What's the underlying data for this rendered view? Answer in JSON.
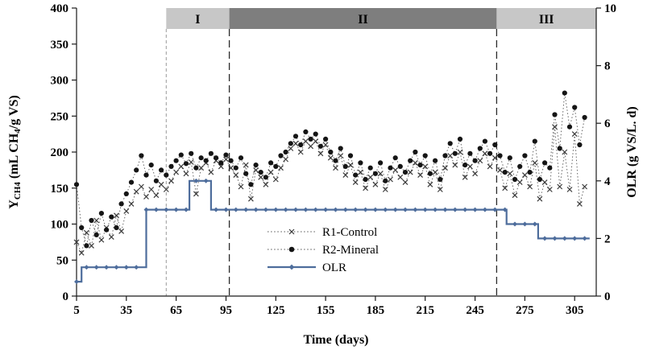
{
  "figure": {
    "background": "#ffffff"
  },
  "chart_data": {
    "type": "scatter",
    "title": "",
    "xlabel": "Time (days)",
    "ylabel_left": "Y_{CH4}  (mL CH_{4}/g VS)",
    "ylabel_right": "OLR (g VS/L. d)",
    "xlim": [
      5,
      318
    ],
    "ylim_left": [
      0,
      400
    ],
    "ylim_right": [
      0,
      10
    ],
    "x_ticks": [
      5,
      35,
      65,
      95,
      125,
      155,
      185,
      215,
      245,
      275,
      305
    ],
    "y_left_ticks": [
      0,
      50,
      100,
      150,
      200,
      250,
      300,
      350,
      400
    ],
    "y_right_ticks": [
      0,
      2,
      4,
      6,
      8,
      10
    ],
    "grid": false,
    "legend_position": "inside-bottom-center",
    "phases": [
      {
        "label": "I",
        "from": 59,
        "to": 97,
        "color": "#c7c7c7"
      },
      {
        "label": "II",
        "from": 97,
        "to": 258,
        "color": "#7e7e7e"
      },
      {
        "label": "III",
        "from": 258,
        "to": 318,
        "color": "#c7c7c7"
      }
    ],
    "guide_lines": [
      {
        "x": 59,
        "color": "#9a9a9a",
        "dash": "4 3",
        "width": 1
      },
      {
        "x": 97,
        "color": "#2b2b2b",
        "dash": "9 5",
        "width": 1.3
      },
      {
        "x": 258,
        "color": "#2b2b2b",
        "dash": "9 5",
        "width": 1.3
      }
    ],
    "series": [
      {
        "name": "R1-Control",
        "axis": "left",
        "marker": "x",
        "marker_color": "#3a3a3a",
        "line": "dotted",
        "line_color": "#555555",
        "points": [
          [
            5,
            75
          ],
          [
            8,
            60
          ],
          [
            11,
            88
          ],
          [
            14,
            70
          ],
          [
            17,
            105
          ],
          [
            20,
            78
          ],
          [
            23,
            95
          ],
          [
            26,
            82
          ],
          [
            29,
            112
          ],
          [
            32,
            90
          ],
          [
            35,
            118
          ],
          [
            38,
            128
          ],
          [
            41,
            145
          ],
          [
            44,
            152
          ],
          [
            47,
            138
          ],
          [
            50,
            148
          ],
          [
            53,
            140
          ],
          [
            56,
            155
          ],
          [
            59,
            148
          ],
          [
            62,
            160
          ],
          [
            65,
            172
          ],
          [
            68,
            180
          ],
          [
            71,
            170
          ],
          [
            74,
            186
          ],
          [
            77,
            142
          ],
          [
            80,
            178
          ],
          [
            83,
            185
          ],
          [
            86,
            172
          ],
          [
            89,
            188
          ],
          [
            92,
            180
          ],
          [
            95,
            190
          ],
          [
            98,
            178
          ],
          [
            101,
            168
          ],
          [
            104,
            152
          ],
          [
            107,
            182
          ],
          [
            110,
            135
          ],
          [
            113,
            175
          ],
          [
            116,
            165
          ],
          [
            119,
            155
          ],
          [
            122,
            172
          ],
          [
            125,
            162
          ],
          [
            128,
            178
          ],
          [
            131,
            190
          ],
          [
            134,
            205
          ],
          [
            137,
            212
          ],
          [
            140,
            200
          ],
          [
            143,
            215
          ],
          [
            146,
            208
          ],
          [
            149,
            215
          ],
          [
            152,
            198
          ],
          [
            155,
            210
          ],
          [
            158,
            192
          ],
          [
            161,
            178
          ],
          [
            164,
            195
          ],
          [
            167,
            168
          ],
          [
            170,
            182
          ],
          [
            173,
            158
          ],
          [
            176,
            172
          ],
          [
            179,
            150
          ],
          [
            182,
            165
          ],
          [
            185,
            155
          ],
          [
            188,
            170
          ],
          [
            191,
            148
          ],
          [
            194,
            162
          ],
          [
            197,
            175
          ],
          [
            200,
            165
          ],
          [
            203,
            158
          ],
          [
            206,
            172
          ],
          [
            209,
            185
          ],
          [
            212,
            168
          ],
          [
            215,
            180
          ],
          [
            218,
            155
          ],
          [
            221,
            172
          ],
          [
            224,
            148
          ],
          [
            227,
            178
          ],
          [
            230,
            195
          ],
          [
            233,
            182
          ],
          [
            236,
            200
          ],
          [
            239,
            165
          ],
          [
            242,
            180
          ],
          [
            245,
            170
          ],
          [
            248,
            188
          ],
          [
            251,
            198
          ],
          [
            254,
            180
          ],
          [
            257,
            192
          ],
          [
            260,
            175
          ],
          [
            263,
            150
          ],
          [
            266,
            170
          ],
          [
            269,
            140
          ],
          [
            272,
            158
          ],
          [
            275,
            168
          ],
          [
            278,
            152
          ],
          [
            281,
            185
          ],
          [
            284,
            135
          ],
          [
            287,
            158
          ],
          [
            290,
            148
          ],
          [
            293,
            235
          ],
          [
            296,
            152
          ],
          [
            299,
            200
          ],
          [
            302,
            148
          ],
          [
            305,
            225
          ],
          [
            308,
            128
          ],
          [
            311,
            152
          ]
        ]
      },
      {
        "name": "R2-Mineral",
        "axis": "left",
        "marker": "circle",
        "marker_color": "#151515",
        "line": "dotted",
        "line_color": "#555555",
        "points": [
          [
            5,
            155
          ],
          [
            8,
            95
          ],
          [
            11,
            70
          ],
          [
            14,
            105
          ],
          [
            17,
            85
          ],
          [
            20,
            115
          ],
          [
            23,
            92
          ],
          [
            26,
            110
          ],
          [
            29,
            95
          ],
          [
            32,
            128
          ],
          [
            35,
            142
          ],
          [
            38,
            158
          ],
          [
            41,
            175
          ],
          [
            44,
            195
          ],
          [
            47,
            168
          ],
          [
            50,
            182
          ],
          [
            53,
            160
          ],
          [
            56,
            175
          ],
          [
            59,
            168
          ],
          [
            62,
            180
          ],
          [
            65,
            188
          ],
          [
            68,
            196
          ],
          [
            71,
            184
          ],
          [
            74,
            198
          ],
          [
            77,
            178
          ],
          [
            80,
            192
          ],
          [
            83,
            188
          ],
          [
            86,
            198
          ],
          [
            89,
            192
          ],
          [
            92,
            185
          ],
          [
            95,
            196
          ],
          [
            98,
            188
          ],
          [
            101,
            178
          ],
          [
            104,
            192
          ],
          [
            107,
            170
          ],
          [
            110,
            155
          ],
          [
            113,
            182
          ],
          [
            116,
            172
          ],
          [
            119,
            165
          ],
          [
            122,
            185
          ],
          [
            125,
            180
          ],
          [
            128,
            195
          ],
          [
            131,
            200
          ],
          [
            134,
            212
          ],
          [
            137,
            222
          ],
          [
            140,
            210
          ],
          [
            143,
            228
          ],
          [
            146,
            218
          ],
          [
            149,
            225
          ],
          [
            152,
            208
          ],
          [
            155,
            218
          ],
          [
            158,
            200
          ],
          [
            161,
            188
          ],
          [
            164,
            205
          ],
          [
            167,
            180
          ],
          [
            170,
            195
          ],
          [
            173,
            168
          ],
          [
            176,
            185
          ],
          [
            179,
            162
          ],
          [
            182,
            178
          ],
          [
            185,
            170
          ],
          [
            188,
            185
          ],
          [
            191,
            160
          ],
          [
            194,
            178
          ],
          [
            197,
            192
          ],
          [
            200,
            180
          ],
          [
            203,
            172
          ],
          [
            206,
            188
          ],
          [
            209,
            200
          ],
          [
            212,
            182
          ],
          [
            215,
            195
          ],
          [
            218,
            170
          ],
          [
            221,
            188
          ],
          [
            224,
            162
          ],
          [
            227,
            195
          ],
          [
            230,
            212
          ],
          [
            233,
            198
          ],
          [
            236,
            218
          ],
          [
            239,
            182
          ],
          [
            242,
            198
          ],
          [
            245,
            188
          ],
          [
            248,
            205
          ],
          [
            251,
            215
          ],
          [
            254,
            198
          ],
          [
            257,
            210
          ],
          [
            260,
            195
          ],
          [
            263,
            172
          ],
          [
            266,
            192
          ],
          [
            269,
            162
          ],
          [
            272,
            180
          ],
          [
            275,
            195
          ],
          [
            278,
            172
          ],
          [
            281,
            215
          ],
          [
            284,
            162
          ],
          [
            287,
            185
          ],
          [
            290,
            178
          ],
          [
            293,
            252
          ],
          [
            296,
            205
          ],
          [
            299,
            282
          ],
          [
            302,
            235
          ],
          [
            305,
            262
          ],
          [
            308,
            210
          ],
          [
            311,
            248
          ]
        ]
      },
      {
        "name": "OLR",
        "axis": "right",
        "marker": "diamond",
        "marker_color": "#4e6d9c",
        "line": "step",
        "line_color": "#4e6d9c",
        "marker_every": 6,
        "marker_to": 311,
        "steps": [
          [
            5,
            0.5
          ],
          [
            8,
            0.5
          ],
          [
            8,
            1
          ],
          [
            47,
            1
          ],
          [
            47,
            3
          ],
          [
            73,
            3
          ],
          [
            73,
            4
          ],
          [
            86,
            4
          ],
          [
            86,
            3
          ],
          [
            264,
            3
          ],
          [
            264,
            2.5
          ],
          [
            283,
            2.5
          ],
          [
            283,
            2
          ],
          [
            314,
            2
          ]
        ]
      }
    ]
  }
}
